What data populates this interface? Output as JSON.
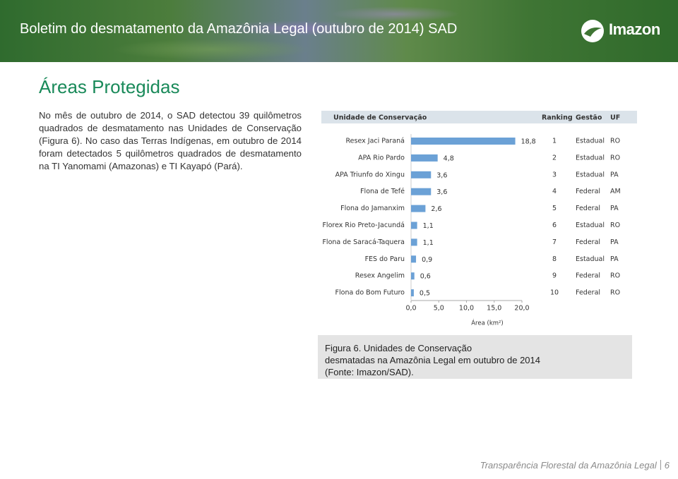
{
  "header": {
    "title": "Boletim do desmatamento da Amazônia Legal (outubro de 2014) SAD",
    "logo": "Imazon"
  },
  "section": {
    "title": "Áreas Protegidas",
    "paragraph": "No mês de outubro de 2014, o SAD detectou 39 quilômetros quadrados de desmatamento nas Unidades de Conservação (Figura 6). No caso das Terras Indígenas, em outubro de 2014 foram detectados 5 quilômetros quadrados de desmatamento na TI Yanomami (Amazonas) e TI Kayapó (Pará)."
  },
  "chart_data": {
    "type": "hbar",
    "column_headers": [
      "Unidade de Conservação",
      "Ranking",
      "Gestão",
      "UF"
    ],
    "categories": [
      "Resex Jaci Paraná",
      "APA  Rio Pardo",
      "APA   Triunfo do Xingu",
      "Flona de Tefé",
      "Flona do Jamanxim",
      "Florex  Rio Preto-Jacundá",
      "Flona de Saracá-Taquera",
      "FES do Paru",
      "Resex Angelim",
      "Flona do Bom Futuro"
    ],
    "values": [
      18.8,
      4.8,
      3.6,
      3.6,
      2.6,
      1.1,
      1.1,
      0.9,
      0.6,
      0.5
    ],
    "value_labels": [
      "18,8",
      "4,8",
      "3,6",
      "3,6",
      "2,6",
      "1,1",
      "1,1",
      "0,9",
      "0,6",
      "0,5"
    ],
    "color": "#6ba1d6",
    "ranking": [
      1,
      2,
      3,
      4,
      5,
      6,
      7,
      8,
      9,
      10
    ],
    "gestao": [
      "Estadual",
      "Estadual",
      "Estadual",
      "Federal",
      "Federal",
      "Estadual",
      "Federal",
      "Estadual",
      "Federal",
      "Federal"
    ],
    "uf": [
      "RO",
      "RO",
      "PA",
      "AM",
      "PA",
      "RO",
      "PA",
      "PA",
      "RO",
      "RO"
    ],
    "xlim": [
      0,
      20
    ],
    "xticks": [
      {
        "value": 0,
        "label": "0,0"
      },
      {
        "value": 5,
        "label": "5,0"
      },
      {
        "value": 10,
        "label": "10,0"
      },
      {
        "value": 15,
        "label": "15,0"
      },
      {
        "value": 20,
        "label": "20,0"
      }
    ],
    "xlabel": "Área (km²)"
  },
  "caption": {
    "lines": [
      "Figura 6. Unidades de Conservação",
      "desmatadas na Amazônia Legal em outubro de 2014",
      "(Fonte: Imazon/SAD)."
    ]
  },
  "footer": {
    "text": "Transparência Florestal da Amazônia Legal",
    "page": 6
  }
}
